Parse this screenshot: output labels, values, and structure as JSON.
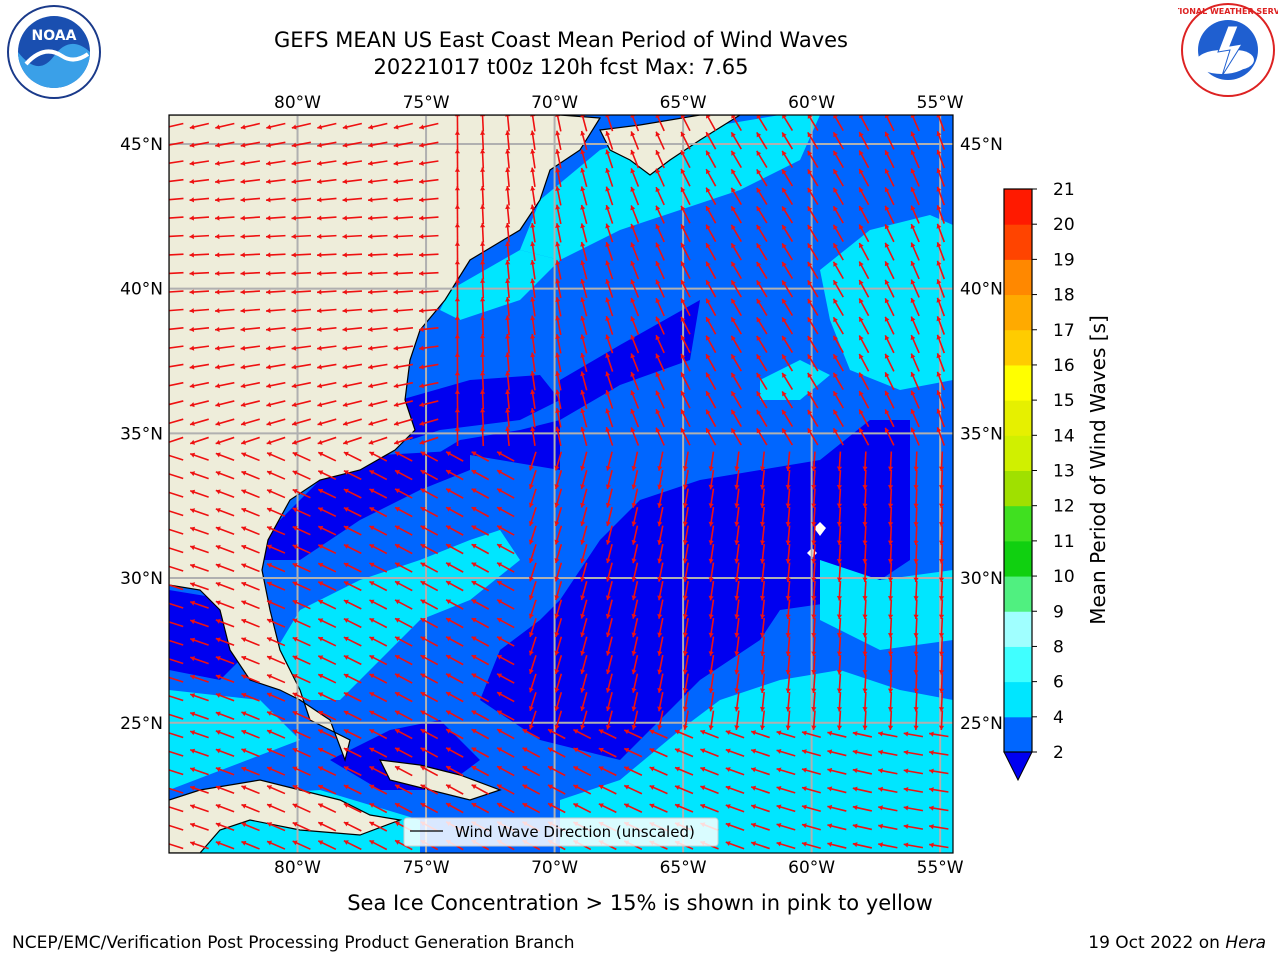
{
  "header": {
    "title_line1": "GEFS MEAN US East Coast Mean Period of Wind Waves",
    "title_line2": "20221017 t00z 120h fcst   Max: 7.65"
  },
  "logos": {
    "left": "NOAA",
    "right": "NATIONAL WEATHER SERVICE"
  },
  "map": {
    "projection": "equirectangular",
    "lon_labels": [
      "80°W",
      "75°W",
      "70°W",
      "65°W",
      "60°W",
      "55°W"
    ],
    "lat_labels": [
      "45°N",
      "40°N",
      "35°N",
      "30°N",
      "25°N"
    ],
    "grid_lons": [
      -80,
      -75,
      -70,
      -65,
      -60,
      -55
    ],
    "grid_lats": [
      45,
      40,
      35,
      30,
      25
    ],
    "lon_range": [
      -85,
      -54.5
    ],
    "lat_range": [
      20.5,
      46
    ],
    "colors": {
      "land": "#eeedda",
      "grid": "#b0b0b0",
      "arrow": "#ee1111",
      "coast": "#000000"
    },
    "legend_label": "Wind Wave Direction (unscaled)"
  },
  "colorbar": {
    "title": "Mean Period of Wind Waves [s]",
    "ticks": [
      "2",
      "4",
      "6",
      "8",
      "9",
      "10",
      "11",
      "12",
      "13",
      "14",
      "15",
      "16",
      "17",
      "18",
      "19",
      "20",
      "21"
    ],
    "colors": [
      "#0000f0",
      "#0066ff",
      "#00e6ff",
      "#40ffff",
      "#a0ffff",
      "#50f080",
      "#10d010",
      "#40e020",
      "#a0e000",
      "#d0f000",
      "#e6f000",
      "#ffff00",
      "#ffcc00",
      "#ffaa00",
      "#ff8800",
      "#ff4400",
      "#ff1a00",
      "#ff0000"
    ],
    "under_color": "#0000f0"
  },
  "caption": "Sea Ice Concentration > 15% is shown in pink to yellow",
  "footer": {
    "left": "NCEP/EMC/Verification Post Processing Product Generation Branch",
    "right_prefix": "19 Oct 2022 on ",
    "right_machine": "Hera"
  }
}
